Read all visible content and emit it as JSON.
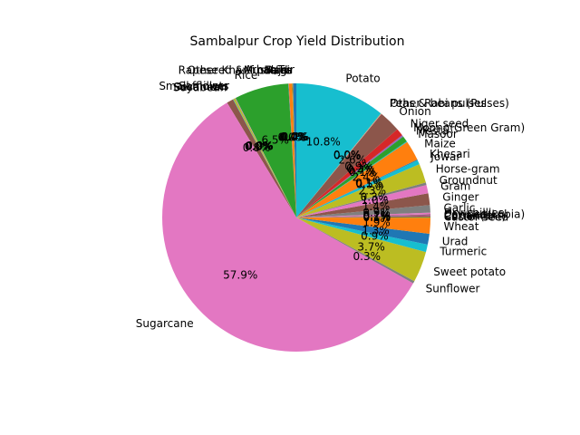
{
  "chart_data": {
    "type": "pie",
    "title": "Sambalpur Crop Yield Distribution",
    "start_angle_deg": 90,
    "direction": "counterclockwise",
    "slices": [
      {
        "label": "Arhar/Tur",
        "value": 0.4,
        "pct_text": "0.4%",
        "color": "#1f77b4"
      },
      {
        "label": "Bajra",
        "value": 0.05,
        "pct_text": "0.0%",
        "color": "#ff7f0e"
      },
      {
        "label": "Other Kharif pulses",
        "value": 0.05,
        "pct_text": "0.0%",
        "color": "#2ca02c"
      },
      {
        "label": "Ragi",
        "value": 0.4,
        "pct_text": "0.4%",
        "color": "#ff7f0e"
      },
      {
        "label": "Rapeseed &Mustard",
        "value": 0.05,
        "pct_text": "0.0%",
        "color": "#9467bd"
      },
      {
        "label": "Rice",
        "value": 6.5,
        "pct_text": "6.5%",
        "color": "#2ca02c"
      },
      {
        "label": "Safflower",
        "value": 0.05,
        "pct_text": "0.0%",
        "color": "#e377c2"
      },
      {
        "label": "Small millets",
        "value": 0.05,
        "pct_text": "0.0%",
        "color": "#7f7f7f"
      },
      {
        "label": "Sesamum",
        "value": 0.2,
        "pct_text": "0.2%",
        "color": "#bcbd22"
      },
      {
        "label": "Soyabean",
        "value": 0.05,
        "pct_text": "0.0%",
        "color": "#17becf"
      },
      {
        "label": "",
        "value": 0.8,
        "pct_text": "0.8%",
        "color": "#8c564b"
      },
      {
        "label": "Sugarcane",
        "value": 57.9,
        "pct_text": "57.9%",
        "color": "#e377c2"
      },
      {
        "label": "Sunflower",
        "value": 0.3,
        "pct_text": "0.3%",
        "color": "#7f7f7f"
      },
      {
        "label": "Sweet potato",
        "value": 3.7,
        "pct_text": "3.7%",
        "color": "#bcbd22"
      },
      {
        "label": "Turmeric",
        "value": 0.9,
        "pct_text": "0.9%",
        "color": "#17becf"
      },
      {
        "label": "Urad",
        "value": 1.3,
        "pct_text": "1.3%",
        "color": "#1f77b4"
      },
      {
        "label": "Wheat",
        "value": 1.9,
        "pct_text": "1.9%",
        "color": "#ff7f0e"
      },
      {
        "label": "Castor seed",
        "value": 0.1,
        "pct_text": "0.1%",
        "color": "#2ca02c"
      },
      {
        "label": "Cotton(lint)",
        "value": 0.1,
        "pct_text": "0.1%",
        "color": "#d62728"
      },
      {
        "label": "Coriander",
        "value": 0.1,
        "pct_text": "0.1%",
        "color": "#9467bd"
      },
      {
        "label": "Cowpea(Lobia)",
        "value": 0.1,
        "pct_text": "0.1%",
        "color": "#8c564b"
      },
      {
        "label": "Dry chillies",
        "value": 0.2,
        "pct_text": "0.2%",
        "color": "#e377c2"
      },
      {
        "label": "Garlic",
        "value": 0.9,
        "pct_text": "0.9%",
        "color": "#7f7f7f"
      },
      {
        "label": "Ginger",
        "value": 1.4,
        "pct_text": "1.4%",
        "color": "#8c564b"
      },
      {
        "label": "Gram",
        "value": 1.0,
        "pct_text": "1.0%",
        "color": "#e377c2"
      },
      {
        "label": "Groundnut",
        "value": 0.3,
        "pct_text": "0.3%",
        "color": "#7f7f7f"
      },
      {
        "label": "Horse-gram",
        "value": 2.3,
        "pct_text": "2.3%",
        "color": "#bcbd22"
      },
      {
        "label": "Jowar",
        "value": 0.5,
        "pct_text": "0.5%",
        "color": "#17becf"
      },
      {
        "label": "Khesari",
        "value": 0.1,
        "pct_text": "0.1%",
        "color": "#1f77b4"
      },
      {
        "label": "Maize",
        "value": 2.4,
        "pct_text": "2.4%",
        "color": "#ff7f0e"
      },
      {
        "label": "Masoor",
        "value": 0.1,
        "pct_text": "0.1%",
        "color": "#17becf"
      },
      {
        "label": "Mesta",
        "value": 0.7,
        "pct_text": "0.7%",
        "color": "#2ca02c"
      },
      {
        "label": "Moong(Green Gram)",
        "value": 0.2,
        "pct_text": "0.2%",
        "color": "#9467bd"
      },
      {
        "label": "Niger seed",
        "value": 0.9,
        "pct_text": "0.9%",
        "color": "#d62728"
      },
      {
        "label": "Onion",
        "value": 2.6,
        "pct_text": "2.6%",
        "color": "#8c564b"
      },
      {
        "label": "Other Rabi pulses",
        "value": 0.05,
        "pct_text": "0.0%",
        "color": "#e377c2"
      },
      {
        "label": "Peas & beans (Pulses)",
        "value": 0.05,
        "pct_text": "0.0%",
        "color": "#bcbd22"
      },
      {
        "label": "Potato",
        "value": 10.8,
        "pct_text": "10.8%",
        "color": "#17becf"
      }
    ]
  }
}
